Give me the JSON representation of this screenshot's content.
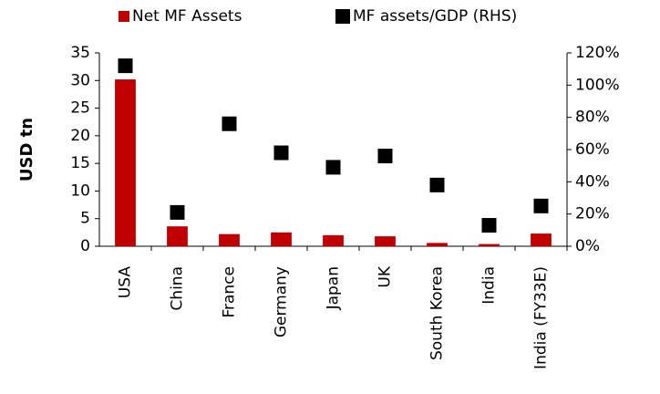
{
  "chart_data": {
    "type": "bar",
    "categories": [
      "USA",
      "China",
      "France",
      "Germany",
      "Japan",
      "UK",
      "South Korea",
      "India",
      "India (FY33E)"
    ],
    "series": [
      {
        "name": "Net MF Assets",
        "type": "bar",
        "color": "#c00000",
        "values": [
          30.2,
          3.6,
          2.2,
          2.5,
          2.0,
          1.8,
          0.6,
          0.4,
          2.3
        ]
      },
      {
        "name": "MF assets/GDP (RHS)",
        "type": "scatter",
        "axis": "y2",
        "color": "#000000",
        "values": [
          112,
          21,
          76,
          58,
          49,
          56,
          38,
          13,
          25
        ]
      }
    ],
    "ylabel": "USD tn",
    "ylim": [
      0,
      35
    ],
    "yticks": [
      0,
      5,
      10,
      15,
      20,
      25,
      30,
      35
    ],
    "y2lim": [
      0,
      120
    ],
    "y2ticks": [
      {
        "value": 0,
        "label": "0%"
      },
      {
        "value": 20,
        "label": "20%"
      },
      {
        "value": 40,
        "label": "40%"
      },
      {
        "value": 60,
        "label": "60%"
      },
      {
        "value": 80,
        "label": "80%"
      },
      {
        "value": 100,
        "label": "100%"
      },
      {
        "value": 120,
        "label": "120%"
      }
    ],
    "legend": "top",
    "grid": false
  }
}
